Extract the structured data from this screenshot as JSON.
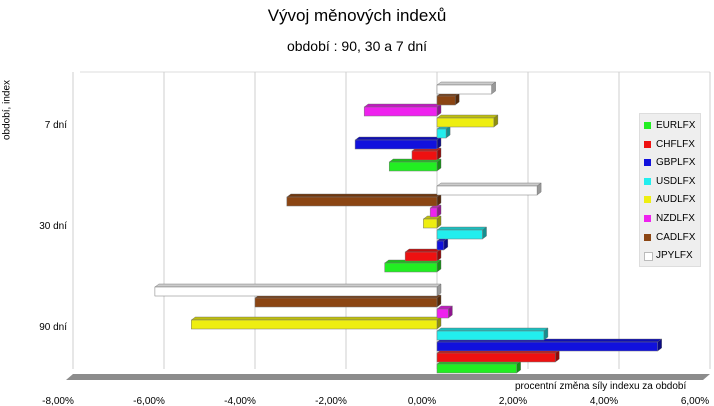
{
  "chart_data": {
    "type": "bar",
    "orientation": "horizontal",
    "title": "Vývoj měnových indexů",
    "subtitle": "období : 90, 30 a 7 dní",
    "xlabel": "procentní změna síly indexu za období",
    "ylabel": "období, index",
    "categories": [
      "90 dní",
      "30 dní",
      "7 dní"
    ],
    "xlim": [
      -8.0,
      6.0
    ],
    "x_ticks": [
      "-8,00%",
      "-6,00%",
      "-4,00%",
      "-2,00%",
      "0,00%",
      "2,00%",
      "4,00%",
      "6,00%"
    ],
    "grid": true,
    "legend_position": "right",
    "series": [
      {
        "name": "EURLFX",
        "color": "#22ee22",
        "values": [
          1.75,
          -1.15,
          -1.05
        ]
      },
      {
        "name": "CHFLFX",
        "color": "#ee1111",
        "values": [
          2.6,
          -0.7,
          -0.55
        ]
      },
      {
        "name": "GBPLFX",
        "color": "#1111dd",
        "values": [
          4.85,
          0.15,
          -1.8
        ]
      },
      {
        "name": "USDLFX",
        "color": "#22eeee",
        "values": [
          2.35,
          1.0,
          0.2
        ]
      },
      {
        "name": "AUDLFX",
        "color": "#eeee11",
        "values": [
          -5.4,
          -0.3,
          1.25
        ]
      },
      {
        "name": "NZDLFX",
        "color": "#ee22ee",
        "values": [
          0.25,
          -0.15,
          -1.6
        ]
      },
      {
        "name": "CADLFX",
        "color": "#8b4513",
        "values": [
          -4.0,
          -3.3,
          0.4
        ]
      },
      {
        "name": "JPYLFX",
        "color": "#ffffff",
        "values": [
          -6.2,
          2.2,
          1.2
        ]
      }
    ]
  }
}
